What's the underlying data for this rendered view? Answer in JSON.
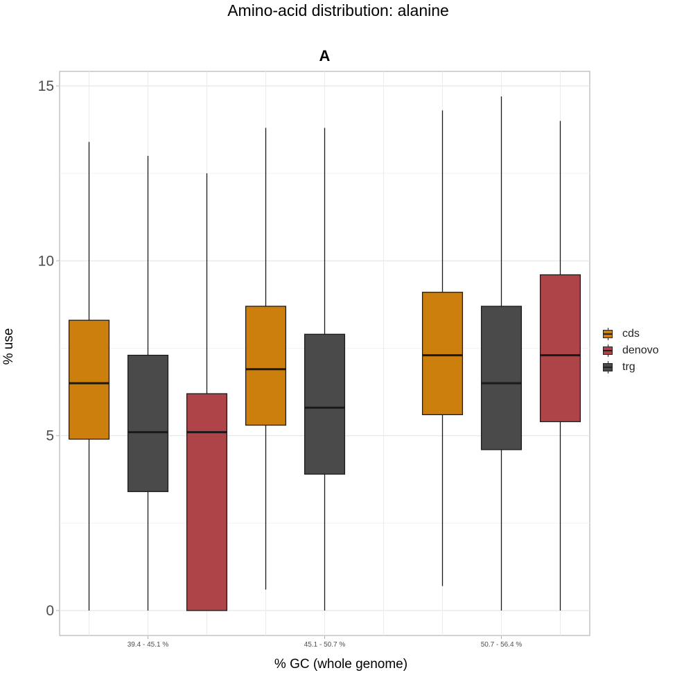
{
  "chart_data": {
    "type": "box",
    "title": "Amino-acid distribution: alanine",
    "panel": "A",
    "xlabel": "% GC (whole genome)",
    "ylabel": "% use",
    "ylim": [
      -0.7,
      15.4
    ],
    "yticks": [
      0,
      5,
      10,
      15
    ],
    "categories": [
      "39.4 - 45.1 %",
      "45.1 - 50.7 %",
      "50.7 - 56.4 %"
    ],
    "series": [
      {
        "name": "cds",
        "color": "#CC7F0C",
        "boxes": [
          {
            "category": "39.4 - 45.1 %",
            "min": 0.0,
            "q1": 4.9,
            "median": 6.5,
            "q3": 8.3,
            "max": 13.4
          },
          {
            "category": "45.1 - 50.7 %",
            "min": 0.6,
            "q1": 5.3,
            "median": 6.9,
            "q3": 8.7,
            "max": 13.8
          },
          {
            "category": "50.7 - 56.4 %",
            "min": 0.7,
            "q1": 5.6,
            "median": 7.3,
            "q3": 9.1,
            "max": 14.3
          }
        ]
      },
      {
        "name": "trg",
        "color": "#4A4A4A",
        "boxes": [
          {
            "category": "39.4 - 45.1 %",
            "min": 0.0,
            "q1": 3.4,
            "median": 5.1,
            "q3": 7.3,
            "max": 13.0
          },
          {
            "category": "45.1 - 50.7 %",
            "min": 0.0,
            "q1": 3.9,
            "median": 5.8,
            "q3": 7.9,
            "max": 13.8
          },
          {
            "category": "50.7 - 56.4 %",
            "min": 0.0,
            "q1": 4.6,
            "median": 6.5,
            "q3": 8.7,
            "max": 14.7
          }
        ]
      },
      {
        "name": "denovo",
        "color": "#AE4448",
        "boxes": [
          {
            "category": "39.4 - 45.1 %",
            "min": 0.0,
            "q1": 0.0,
            "median": 5.1,
            "q3": 6.2,
            "max": 12.5
          },
          {
            "category": "50.7 - 56.4 %",
            "min": 0.0,
            "q1": 5.4,
            "median": 7.3,
            "q3": 9.6,
            "max": 14.0
          }
        ]
      }
    ],
    "legend": {
      "position": "right",
      "entries": [
        {
          "name": "cds",
          "color": "#CC7F0C"
        },
        {
          "name": "denovo",
          "color": "#AE4448"
        },
        {
          "name": "trg",
          "color": "#4A4A4A"
        }
      ]
    },
    "grid": true
  }
}
